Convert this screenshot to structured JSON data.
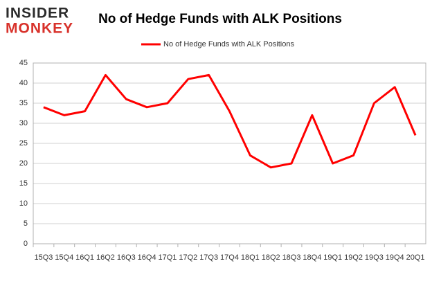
{
  "logo": {
    "top": "INSIDER",
    "bottom": "MONKEY"
  },
  "chart_data": {
    "type": "line",
    "title": "No of Hedge Funds with ALK Positions",
    "categories": [
      "15Q3",
      "15Q4",
      "16Q1",
      "16Q2",
      "16Q3",
      "16Q4",
      "17Q1",
      "17Q2",
      "17Q3",
      "17Q4",
      "18Q1",
      "18Q2",
      "18Q3",
      "18Q4",
      "19Q1",
      "19Q2",
      "19Q3",
      "19Q4",
      "20Q1"
    ],
    "series": [
      {
        "name": "No of Hedge Funds with ALK Positions",
        "color": "#ff0000",
        "values": [
          34,
          32,
          33,
          42,
          36,
          34,
          35,
          41,
          42,
          33,
          22,
          19,
          20,
          32,
          20,
          22,
          35,
          39,
          27
        ]
      }
    ],
    "ylim": [
      0,
      45
    ],
    "yticks": [
      0,
      5,
      10,
      15,
      20,
      25,
      30,
      35,
      40,
      45
    ],
    "grid": true,
    "legend": "top"
  }
}
